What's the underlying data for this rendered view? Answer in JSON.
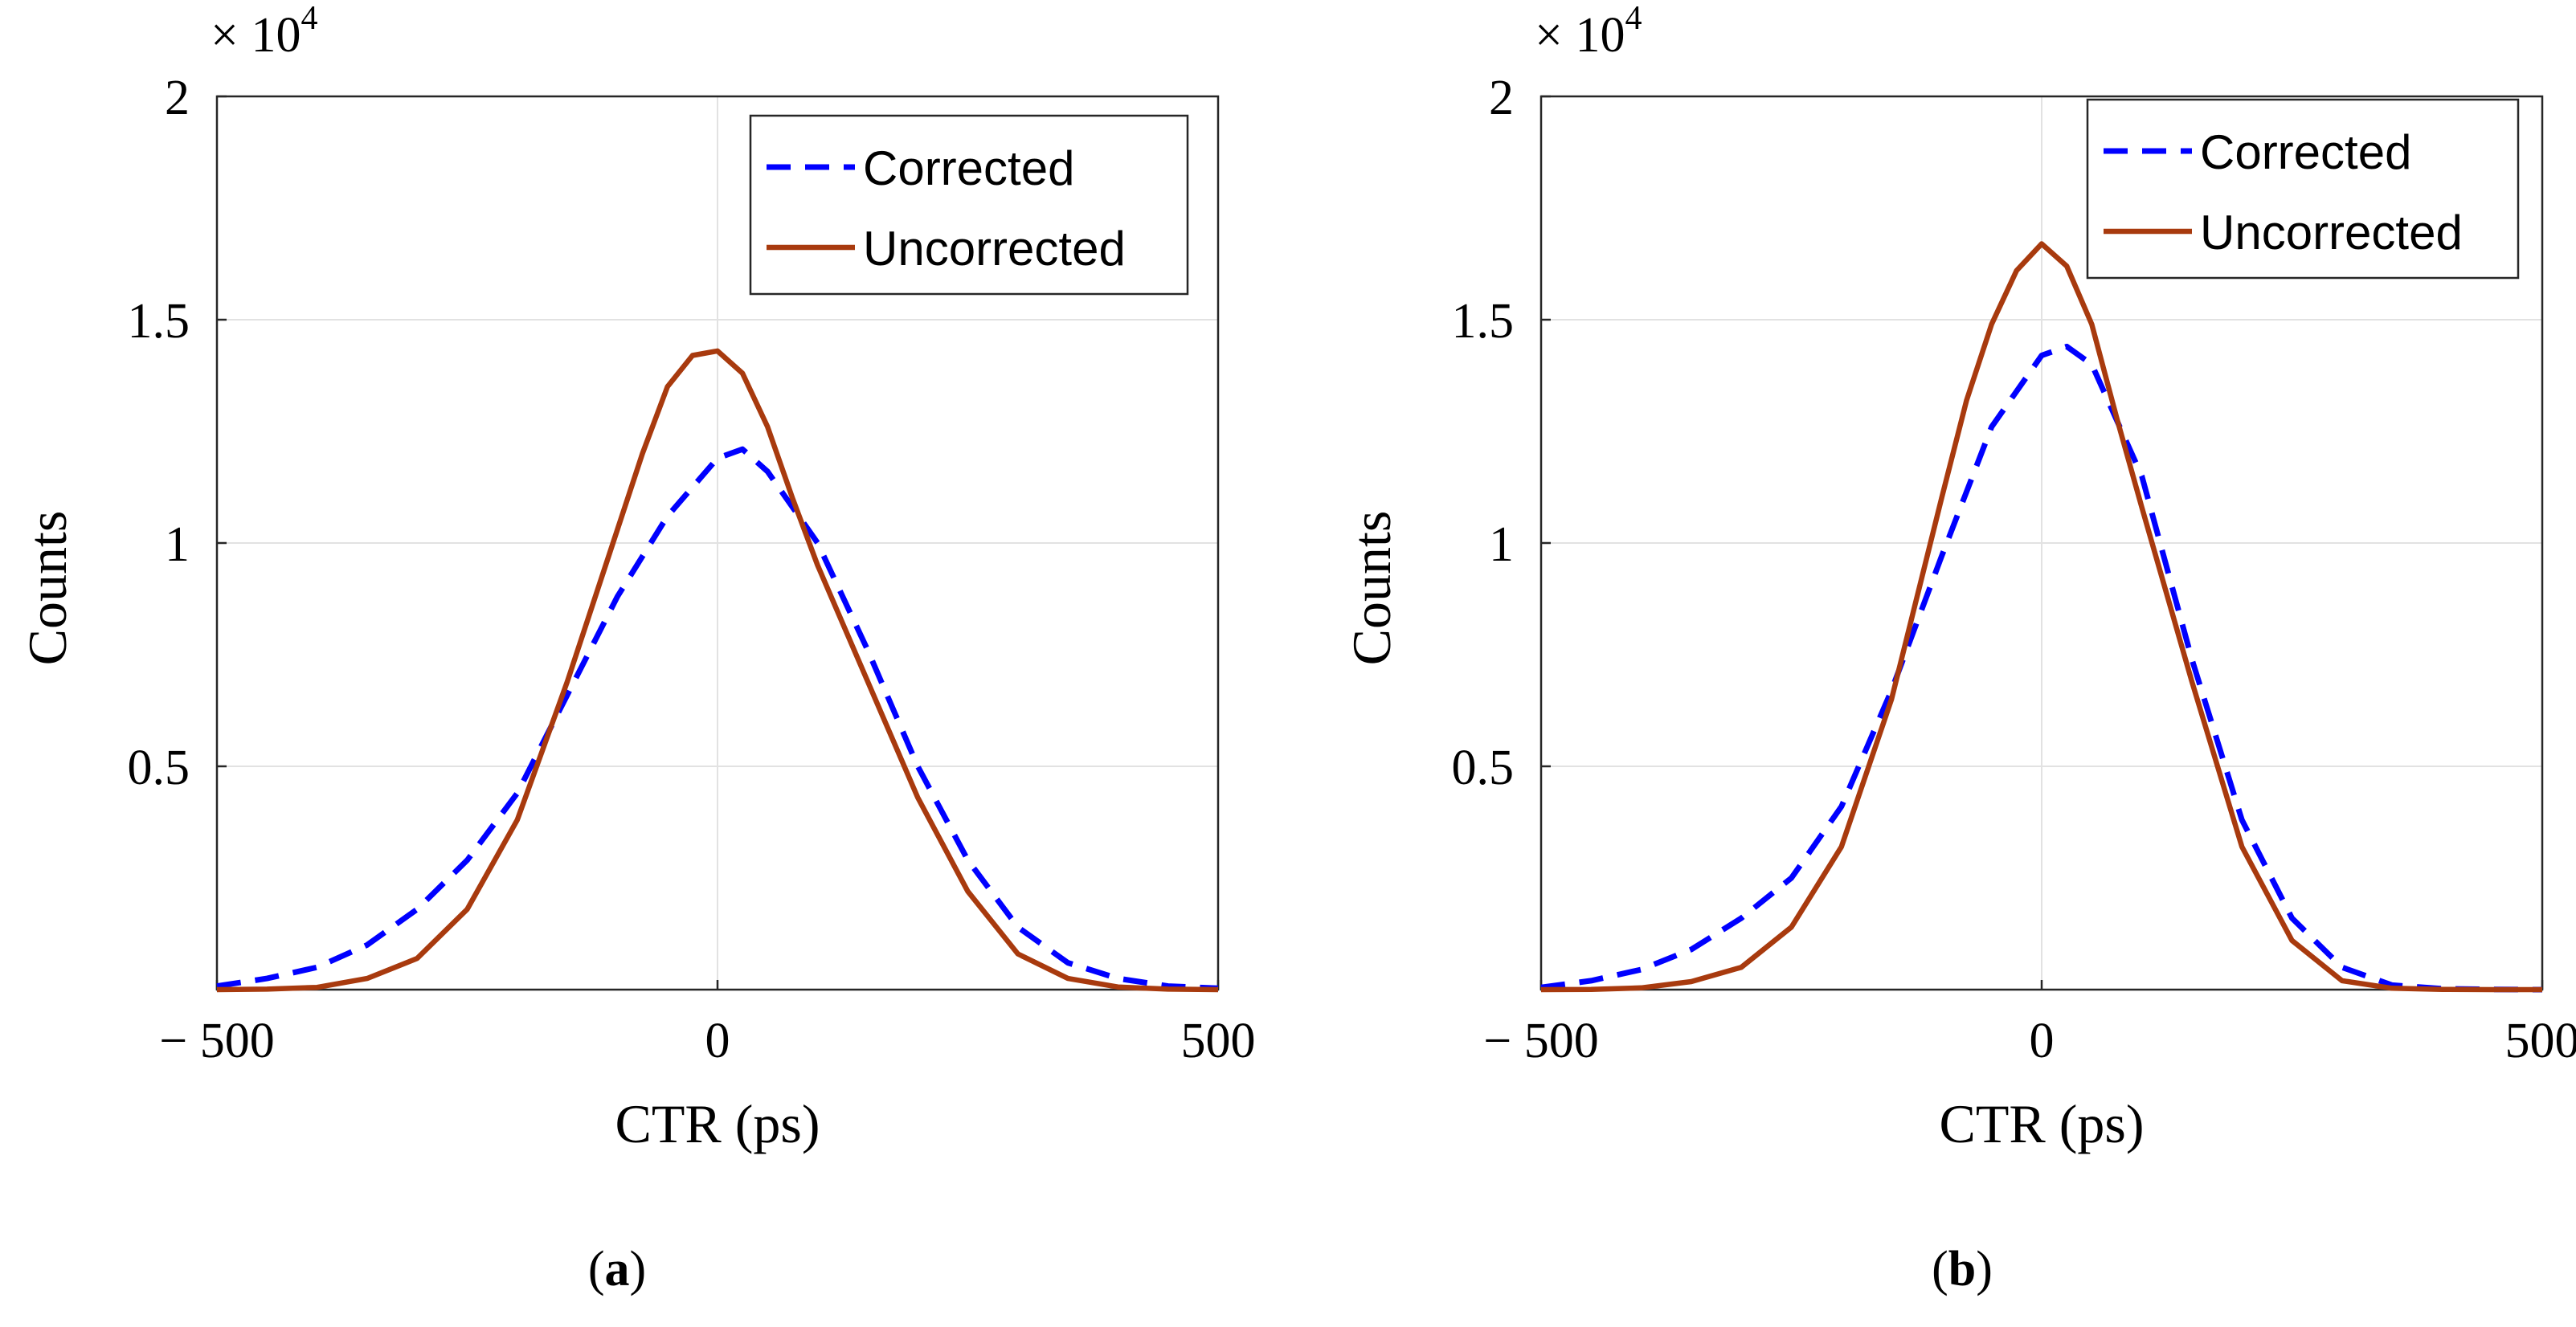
{
  "chart_data": [
    {
      "panel_label": "(a)",
      "panel_letter": "a",
      "type": "line",
      "xlabel": "CTR (ps)",
      "ylabel": "Counts",
      "xlim": [
        -500,
        500
      ],
      "ylim": [
        0,
        20000
      ],
      "xticks": [
        -500,
        0,
        500
      ],
      "xtick_labels": [
        "− 500",
        "0",
        "500"
      ],
      "yticks": [
        5000,
        10000,
        15000,
        20000
      ],
      "ytick_labels": [
        "0.5",
        "1",
        "1.5",
        "2"
      ],
      "y_multiplier": "× 10",
      "y_multiplier_exp": "4",
      "grid": true,
      "legend": "top-right",
      "series": [
        {
          "name": "Corrected",
          "style": "dashed",
          "color": "#0000ff",
          "x": [
            -500,
            -450,
            -400,
            -350,
            -300,
            -250,
            -200,
            -150,
            -100,
            -50,
            0,
            25,
            50,
            100,
            150,
            200,
            250,
            300,
            350,
            400,
            450,
            500
          ],
          "y": [
            80,
            250,
            500,
            1000,
            1800,
            2900,
            4400,
            6600,
            8800,
            10600,
            11900,
            12100,
            11600,
            10000,
            7600,
            5000,
            2900,
            1400,
            600,
            250,
            80,
            30
          ]
        },
        {
          "name": "Uncorrected",
          "style": "solid",
          "color": "#a83a0e",
          "x": [
            -500,
            -450,
            -400,
            -350,
            -300,
            -250,
            -200,
            -150,
            -100,
            -75,
            -50,
            -25,
            0,
            25,
            50,
            75,
            100,
            150,
            200,
            250,
            300,
            350,
            400,
            450,
            500
          ],
          "y": [
            0,
            10,
            50,
            250,
            700,
            1800,
            3800,
            6900,
            10300,
            12000,
            13500,
            14200,
            14300,
            13800,
            12600,
            11000,
            9500,
            6900,
            4300,
            2200,
            800,
            250,
            60,
            10,
            0
          ]
        }
      ]
    },
    {
      "panel_label": "(b)",
      "panel_letter": "b",
      "type": "line",
      "xlabel": "CTR (ps)",
      "ylabel": "Counts",
      "xlim": [
        -500,
        500
      ],
      "ylim": [
        0,
        20000
      ],
      "xticks": [
        -500,
        0,
        500
      ],
      "xtick_labels": [
        "− 500",
        "0",
        "500"
      ],
      "yticks": [
        5000,
        10000,
        15000,
        20000
      ],
      "ytick_labels": [
        "0.5",
        "1",
        "1.5",
        "2"
      ],
      "y_multiplier": "× 10",
      "y_multiplier_exp": "4",
      "grid": true,
      "legend": "top-right",
      "series": [
        {
          "name": "Corrected",
          "style": "dashed",
          "color": "#0000ff",
          "x": [
            -500,
            -450,
            -400,
            -350,
            -300,
            -250,
            -200,
            -150,
            -100,
            -50,
            0,
            25,
            50,
            100,
            150,
            200,
            250,
            300,
            350,
            400,
            450,
            500
          ],
          "y": [
            50,
            200,
            450,
            900,
            1600,
            2500,
            4100,
            6700,
            9700,
            12600,
            14200,
            14400,
            14000,
            11500,
            7400,
            3800,
            1600,
            500,
            100,
            20,
            5,
            0
          ]
        },
        {
          "name": "Uncorrected",
          "style": "solid",
          "color": "#a83a0e",
          "x": [
            -500,
            -450,
            -400,
            -350,
            -300,
            -250,
            -200,
            -150,
            -100,
            -75,
            -50,
            -25,
            0,
            25,
            50,
            75,
            100,
            150,
            200,
            250,
            300,
            350,
            400,
            450,
            500
          ],
          "y": [
            0,
            5,
            40,
            180,
            500,
            1400,
            3200,
            6500,
            11000,
            13200,
            14900,
            16100,
            16700,
            16200,
            14900,
            12800,
            10800,
            6900,
            3200,
            1100,
            200,
            30,
            5,
            0,
            0
          ]
        }
      ]
    }
  ]
}
